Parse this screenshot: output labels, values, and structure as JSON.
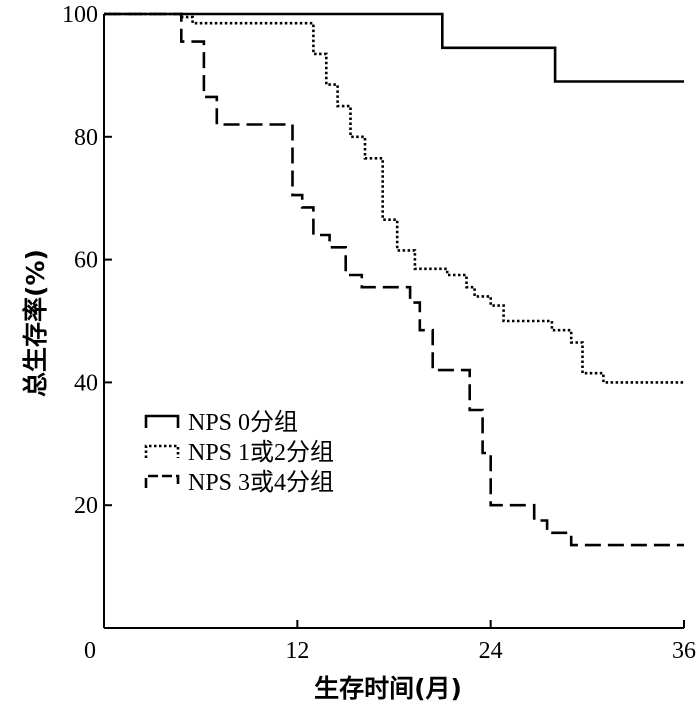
{
  "chart_data": {
    "type": "line",
    "step": true,
    "title": "",
    "xlabel": "生存时间(月)",
    "ylabel": "总生存率(%)",
    "xlim": [
      0,
      36
    ],
    "ylim": [
      0,
      100
    ],
    "xticks": [
      0,
      12,
      24,
      36
    ],
    "yticks": [
      20,
      40,
      60,
      80,
      100
    ],
    "grid": false,
    "legend_position": "lower-left",
    "series": [
      {
        "name": "NPS 0分组",
        "style": "solid",
        "color": "#000000",
        "x": [
          0,
          21.0,
          28.0,
          36
        ],
        "y": [
          100,
          94.5,
          89.0,
          89.0
        ]
      },
      {
        "name": "NPS 1或2分组",
        "style": "dotted",
        "color": "#000000",
        "x": [
          0,
          4.8,
          5.5,
          13.0,
          13.8,
          14.5,
          15.3,
          16.2,
          17.3,
          18.2,
          19.3,
          21.3,
          22.5,
          23.0,
          24.0,
          24.8,
          25.5,
          27.8,
          29.0,
          29.7,
          31.0,
          36
        ],
        "y": [
          100,
          99.5,
          98.5,
          93.5,
          88.5,
          85.0,
          80.0,
          76.5,
          66.5,
          61.5,
          58.5,
          57.5,
          55.5,
          54.0,
          52.5,
          50.0,
          50.0,
          48.5,
          46.5,
          41.5,
          40.0,
          40.0
        ]
      },
      {
        "name": "NPS 3或4分组",
        "style": "dashed",
        "color": "#000000",
        "x": [
          0,
          4.8,
          6.2,
          7.0,
          11.7,
          12.3,
          13.0,
          14.0,
          15.0,
          16.0,
          16.9,
          19.0,
          19.6,
          20.4,
          22.7,
          23.5,
          24.0,
          25.1,
          26.7,
          27.5,
          29.0,
          36
        ],
        "y": [
          100,
          95.5,
          86.5,
          82.0,
          70.5,
          68.5,
          64.0,
          62.0,
          57.5,
          55.5,
          55.5,
          53.0,
          48.5,
          42.0,
          35.5,
          28.5,
          20.0,
          20.0,
          17.5,
          15.5,
          13.5,
          13.5
        ]
      }
    ]
  }
}
